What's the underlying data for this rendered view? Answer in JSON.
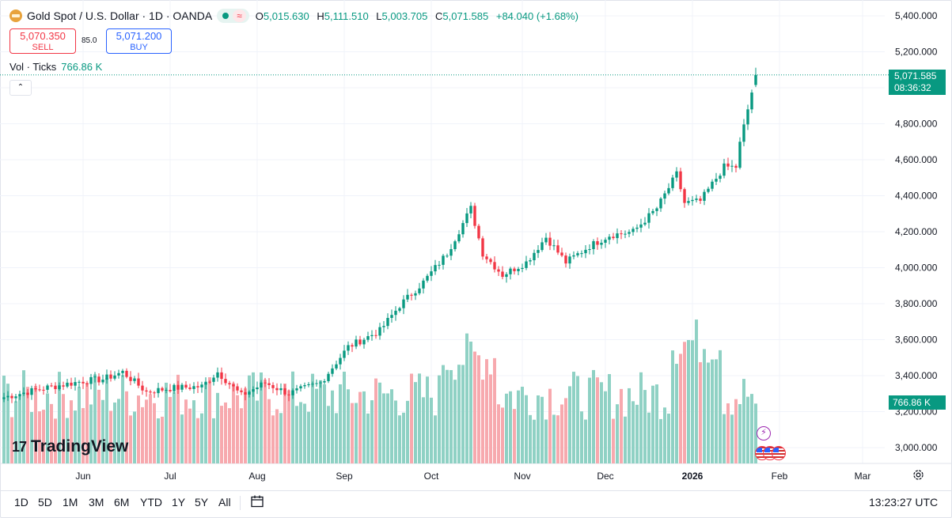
{
  "legend": {
    "symbol_icon": "gold-bar-icon",
    "title": "Gold Spot / U.S. Dollar · 1D · OANDA",
    "ohlc": {
      "o_label": "O",
      "o": "5,015.630",
      "h_label": "H",
      "h": "5,111.510",
      "l_label": "L",
      "l": "5,003.705",
      "c_label": "C",
      "c": "5,071.585",
      "change": "+84.040 (+1.68%)"
    },
    "status_icon": "market-open-dot-icon",
    "wave_label": "≈"
  },
  "trade": {
    "sell_price": "5,070.350",
    "sell_label": "SELL",
    "spread": "85.0",
    "buy_price": "5,071.200",
    "buy_label": "BUY"
  },
  "volume_legend": {
    "label": "Vol · Ticks",
    "value": "766.86 K"
  },
  "collapse_label": "⌃",
  "price_tag": {
    "price": "5,071.585",
    "countdown": "08:36:32"
  },
  "volume_tag": "766.86 K",
  "logo": {
    "mark": "17",
    "text": "TradingView"
  },
  "events": {
    "lightning": "⚡",
    "flags": "us-flag-icon"
  },
  "toolbar": {
    "ranges": [
      "1D",
      "5D",
      "1M",
      "3M",
      "6M",
      "YTD",
      "1Y",
      "5Y",
      "All"
    ],
    "time": "13:23:27 UTC"
  },
  "colors": {
    "up": "#089981",
    "down": "#f23645",
    "up_volume": "#8fd1c4",
    "down_volume": "#f7a9ae",
    "grid": "#f0f3fa"
  },
  "chart_data": {
    "type": "candlestick",
    "title": "Gold Spot / U.S. Dollar · 1D · OANDA",
    "y_axis": {
      "min": 2900,
      "max": 5450,
      "ticks": [
        3000,
        3200,
        3400,
        3600,
        3800,
        4000,
        4200,
        4400,
        4600,
        4800,
        5000,
        5200,
        5400
      ],
      "tick_labels": [
        "3,000.000",
        "3,200.000",
        "3,400.000",
        "3,600.000",
        "3,800.000",
        "4,000.000",
        "4,200.000",
        "4,400.000",
        "4,600.000",
        "4,800.000",
        "5,000.000",
        "5,200.000",
        "5,400.000"
      ]
    },
    "x_axis": {
      "labels": [
        "Jun",
        "Jul",
        "Aug",
        "Sep",
        "Oct",
        "Nov",
        "Dec",
        "2026",
        "Feb",
        "Mar"
      ],
      "bold": [
        "2026"
      ],
      "label_bar_index": [
        20,
        42,
        64,
        86,
        108,
        131,
        152,
        174,
        196,
        217
      ],
      "total_slots": 222
    },
    "anchors": [
      [
        0,
        3280
      ],
      [
        10,
        3330
      ],
      [
        20,
        3370
      ],
      [
        25,
        3380
      ],
      [
        30,
        3420
      ],
      [
        36,
        3310
      ],
      [
        42,
        3330
      ],
      [
        50,
        3340
      ],
      [
        54,
        3420
      ],
      [
        60,
        3290
      ],
      [
        66,
        3360
      ],
      [
        72,
        3300
      ],
      [
        80,
        3360
      ],
      [
        87,
        3560
      ],
      [
        95,
        3650
      ],
      [
        100,
        3790
      ],
      [
        106,
        3920
      ],
      [
        112,
        4080
      ],
      [
        118,
        4330
      ],
      [
        121,
        4080
      ],
      [
        126,
        3960
      ],
      [
        132,
        4030
      ],
      [
        137,
        4170
      ],
      [
        142,
        4030
      ],
      [
        148,
        4120
      ],
      [
        153,
        4180
      ],
      [
        159,
        4200
      ],
      [
        165,
        4330
      ],
      [
        170,
        4520
      ],
      [
        172,
        4360
      ],
      [
        176,
        4370
      ],
      [
        182,
        4560
      ],
      [
        185,
        4560
      ],
      [
        186,
        4690
      ],
      [
        188,
        4880
      ],
      [
        190,
        5071.585
      ]
    ],
    "volume_unit": "K ticks",
    "volume_scale_max": 1000,
    "last_volume": 766.86,
    "last_close": 5071.585
  }
}
